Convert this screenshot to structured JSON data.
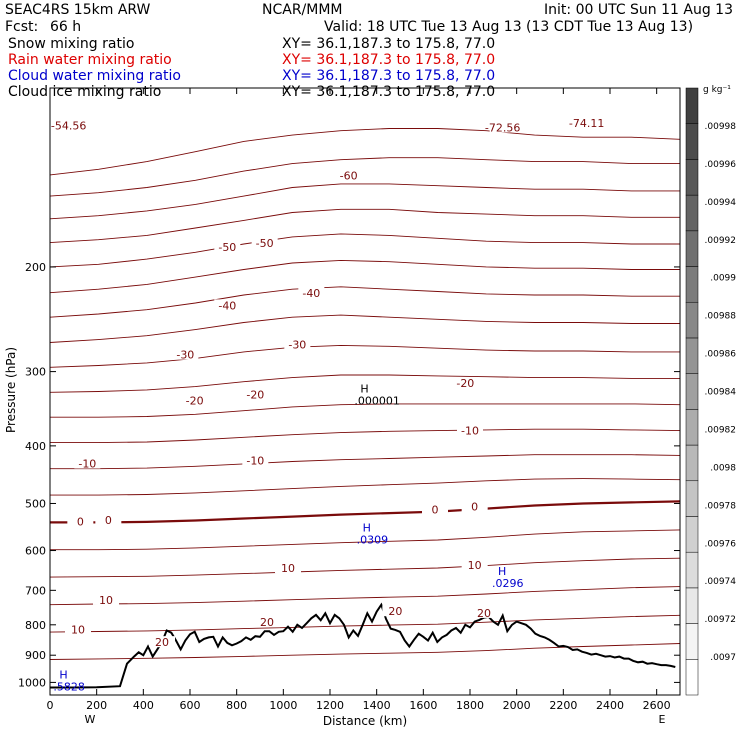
{
  "header": {
    "model": "SEAC4RS 15km ARW",
    "org": "NCAR/MMM",
    "init": "Init: 00 UTC Sun 11 Aug 13",
    "fcst_label": "Fcst:",
    "fcst_value": "66 h",
    "valid": "Valid: 18 UTC Tue 13 Aug 13 (13 CDT Tue 13 Aug 13)",
    "fields": [
      {
        "name": "Snow mixing ratio",
        "xy": "XY=  36.1,187.3 to 175.8, 77.0",
        "color": "#000000"
      },
      {
        "name": "Rain water mixing ratio",
        "xy": "XY=  36.1,187.3 to 175.8, 77.0",
        "color": "#dd0000"
      },
      {
        "name": "Cloud water mixing ratio",
        "xy": "XY=  36.1,187.3 to 175.8, 77.0",
        "color": "#0000cc"
      },
      {
        "name": "Cloud ice mixing ratio",
        "xy": "XY=  36.1,187.3 to 175.8, 77.0",
        "color": "#000000"
      }
    ]
  },
  "chart_data": {
    "type": "contour",
    "xlabel": "Distance (km)",
    "ylabel": "Pressure (hPa)",
    "x_ticks": [
      0,
      200,
      400,
      600,
      800,
      1000,
      1200,
      1400,
      1600,
      1800,
      2000,
      2200,
      2400,
      2600
    ],
    "xlim": [
      0,
      2700
    ],
    "y_ticks": [
      200,
      300,
      400,
      500,
      600,
      700,
      800,
      900,
      1000
    ],
    "ylim": [
      100,
      1050
    ],
    "y_scale": "log",
    "x_end_labels": {
      "left": "W",
      "right": "E"
    },
    "temperature_contours": [
      {
        "level": "-70",
        "p": [
          140,
          137,
          133,
          128,
          123,
          120,
          118,
          117,
          117,
          118,
          120,
          121,
          121,
          122
        ]
      },
      {
        "level": "-65",
        "p": [
          152,
          150,
          147,
          143,
          138,
          134,
          132,
          131,
          131,
          132,
          133,
          133,
          134,
          134
        ]
      },
      {
        "level": "-60",
        "p": [
          166,
          164,
          161,
          157,
          152,
          147,
          145,
          145,
          146,
          147,
          148,
          148,
          149,
          149
        ]
      },
      {
        "level": "-55",
        "p": [
          182,
          180,
          177,
          172,
          167,
          162,
          160,
          160,
          162,
          163,
          164,
          164,
          165,
          165
        ]
      },
      {
        "level": "-50",
        "p": [
          200,
          198,
          194,
          189,
          183,
          178,
          176,
          177,
          179,
          181,
          182,
          182,
          183,
          183
        ]
      },
      {
        "level": "-45",
        "p": [
          221,
          218,
          214,
          208,
          202,
          197,
          195,
          196,
          198,
          200,
          201,
          201,
          202,
          202
        ]
      },
      {
        "level": "-40",
        "p": [
          243,
          240,
          236,
          230,
          223,
          218,
          216,
          218,
          220,
          222,
          223,
          223,
          224,
          224
        ]
      },
      {
        "level": "-35",
        "p": [
          268,
          265,
          261,
          255,
          248,
          243,
          241,
          243,
          245,
          247,
          248,
          248,
          249,
          249
        ]
      },
      {
        "level": "-30",
        "p": [
          295,
          293,
          290,
          285,
          278,
          273,
          271,
          272,
          274,
          276,
          277,
          277,
          278,
          278
        ]
      },
      {
        "level": "-25",
        "p": [
          325,
          324,
          322,
          318,
          312,
          307,
          304,
          304,
          305,
          306,
          307,
          307,
          308,
          308
        ]
      },
      {
        "level": "-20",
        "p": [
          358,
          358,
          357,
          354,
          349,
          344,
          341,
          340,
          340,
          340,
          340,
          340,
          340,
          341
        ]
      },
      {
        "level": "-15",
        "p": [
          395,
          395,
          394,
          391,
          387,
          383,
          380,
          378,
          377,
          376,
          375,
          375,
          376,
          377
        ]
      },
      {
        "level": "-10",
        "p": [
          437,
          437,
          436,
          433,
          429,
          425,
          422,
          420,
          418,
          416,
          414,
          414,
          414,
          415
        ]
      },
      {
        "level": "-5",
        "p": [
          484,
          484,
          483,
          480,
          476,
          472,
          468,
          465,
          462,
          458,
          455,
          454,
          455,
          456
        ]
      },
      {
        "level": "0",
        "p": [
          538,
          538,
          537,
          534,
          530,
          526,
          522,
          519,
          516,
          510,
          504,
          500,
          498,
          496
        ]
      },
      {
        "level": "5",
        "p": [
          598,
          598,
          597,
          594,
          590,
          586,
          582,
          579,
          576,
          570,
          563,
          558,
          556,
          554
        ]
      },
      {
        "level": "10",
        "p": [
          665,
          664,
          663,
          660,
          656,
          652,
          648,
          645,
          642,
          636,
          629,
          624,
          620,
          618
        ]
      },
      {
        "level": "15",
        "p": [
          740,
          738,
          737,
          734,
          730,
          726,
          722,
          719,
          716,
          710,
          703,
          698,
          693,
          690
        ]
      },
      {
        "level": "20",
        "p": [
          823,
          821,
          819,
          816,
          812,
          808,
          804,
          801,
          798,
          792,
          785,
          780,
          775,
          771
        ]
      },
      {
        "level": "25",
        "p": [
          915,
          913,
          911,
          908,
          904,
          900,
          896,
          893,
          890,
          884,
          876,
          870,
          865,
          860
        ]
      }
    ],
    "contour_labels": [
      {
        "text": "-54.56",
        "x": 80,
        "p": 116
      },
      {
        "text": "-72.56",
        "x": 1940,
        "p": 117
      },
      {
        "text": "-74.11",
        "x": 2300,
        "p": 115
      },
      {
        "text": "-60",
        "x": 1280,
        "p": 141
      },
      {
        "text": "-50",
        "x": 760,
        "p": 186
      },
      {
        "text": "-50",
        "x": 920,
        "p": 183
      },
      {
        "text": "-40",
        "x": 760,
        "p": 233
      },
      {
        "text": "-40",
        "x": 1120,
        "p": 222
      },
      {
        "text": "-30",
        "x": 580,
        "p": 282
      },
      {
        "text": "-30",
        "x": 1060,
        "p": 271
      },
      {
        "text": "-20",
        "x": 620,
        "p": 337
      },
      {
        "text": "-20",
        "x": 880,
        "p": 329
      },
      {
        "text": "-20",
        "x": 1780,
        "p": 315
      },
      {
        "text": "-10",
        "x": 160,
        "p": 430
      },
      {
        "text": "-10",
        "x": 880,
        "p": 425
      },
      {
        "text": "-10",
        "x": 1800,
        "p": 378
      },
      {
        "text": "0",
        "x": 130,
        "p": 538
      },
      {
        "text": "0",
        "x": 250,
        "p": 535
      },
      {
        "text": "0",
        "x": 1650,
        "p": 514
      },
      {
        "text": "0",
        "x": 1820,
        "p": 508
      },
      {
        "text": "10",
        "x": 1020,
        "p": 645
      },
      {
        "text": "10",
        "x": 1820,
        "p": 637
      },
      {
        "text": "10",
        "x": 240,
        "p": 729
      },
      {
        "text": "10",
        "x": 120,
        "p": 818
      },
      {
        "text": "20",
        "x": 930,
        "p": 795
      },
      {
        "text": "20",
        "x": 1480,
        "p": 762
      },
      {
        "text": "20",
        "x": 1860,
        "p": 767
      },
      {
        "text": "20",
        "x": 480,
        "p": 859
      }
    ],
    "extrema_labels": [
      {
        "symbol": "H",
        "value": ".000001",
        "x": 1330,
        "p": 325,
        "color": "#000000"
      },
      {
        "symbol": "H",
        "value": ".0309",
        "x": 1340,
        "p": 557,
        "color": "#0000cc"
      },
      {
        "symbol": "H",
        "value": ".0296",
        "x": 1920,
        "p": 660,
        "color": "#0000cc"
      },
      {
        "symbol": "H",
        "value": ".5828",
        "x": 40,
        "p": 985,
        "color": "#0000cc"
      }
    ],
    "terrain": {
      "x": [
        0,
        100,
        200,
        300,
        330,
        360,
        380,
        400,
        420,
        440,
        460,
        480,
        500,
        520,
        540,
        560,
        580,
        600,
        620,
        640,
        660,
        680,
        700,
        720,
        740,
        760,
        780,
        800,
        820,
        840,
        860,
        880,
        900,
        920,
        940,
        960,
        980,
        1000,
        1020,
        1040,
        1060,
        1080,
        1100,
        1120,
        1140,
        1160,
        1180,
        1200,
        1220,
        1240,
        1260,
        1280,
        1300,
        1320,
        1340,
        1360,
        1380,
        1400,
        1420,
        1440,
        1460,
        1480,
        1500,
        1520,
        1540,
        1560,
        1580,
        1600,
        1620,
        1640,
        1660,
        1680,
        1700,
        1720,
        1740,
        1760,
        1780,
        1800,
        1820,
        1840,
        1860,
        1880,
        1900,
        1920,
        1940,
        1960,
        1980,
        2000,
        2020,
        2040,
        2060,
        2080,
        2100,
        2120,
        2140,
        2160,
        2180,
        2200,
        2220,
        2240,
        2260,
        2280,
        2300,
        2320,
        2340,
        2360,
        2380,
        2400,
        2420,
        2440,
        2460,
        2480,
        2500,
        2520,
        2540,
        2560,
        2580,
        2600,
        2620,
        2640,
        2660,
        2680
      ],
      "p": [
        1020,
        1020,
        1019,
        1015,
        930,
        905,
        890,
        900,
        870,
        905,
        880,
        855,
        818,
        825,
        850,
        880,
        850,
        830,
        822,
        855,
        845,
        840,
        838,
        870,
        840,
        858,
        866,
        860,
        852,
        840,
        848,
        836,
        838,
        820,
        820,
        832,
        822,
        820,
        806,
        822,
        800,
        810,
        795,
        780,
        770,
        786,
        765,
        795,
        770,
        780,
        800,
        840,
        818,
        835,
        800,
        765,
        790,
        760,
        740,
        782,
        812,
        816,
        822,
        850,
        870,
        848,
        828,
        838,
        850,
        825,
        855,
        840,
        832,
        818,
        810,
        825,
        800,
        808,
        790,
        785,
        778,
        776,
        790,
        800,
        772,
        820,
        800,
        790,
        795,
        800,
        812,
        828,
        835,
        840,
        848,
        858,
        870,
        868,
        872,
        882,
        880,
        888,
        892,
        898,
        895,
        900,
        905,
        903,
        908,
        905,
        912,
        912,
        920,
        925,
        923,
        930,
        928,
        932,
        935,
        935,
        938,
        942,
        938,
        948
      ]
    },
    "color_bar": {
      "units": "g kg⁻¹",
      "labels": [
        ".0097",
        ".00972",
        ".00974",
        ".00976",
        ".00978",
        ".0098",
        ".00982",
        ".00984",
        ".00986",
        ".00988",
        ".0099",
        ".00992",
        ".00994",
        ".00996",
        ".00998"
      ],
      "gradient": [
        "#ffffff",
        "#f4f4f4",
        "#e8e8e8",
        "#dcdcdc",
        "#d0d0d0",
        "#c4c4c4",
        "#b8b8b8",
        "#acacac",
        "#a0a0a0",
        "#949494",
        "#888888",
        "#7c7c7c",
        "#707070",
        "#646464",
        "#585858",
        "#4c4c4c",
        "#404040"
      ]
    },
    "colors": {
      "temperature": "#7a0b0b",
      "cloud_water": "#0000cc",
      "terrain": "#000000"
    },
    "grid": false
  }
}
